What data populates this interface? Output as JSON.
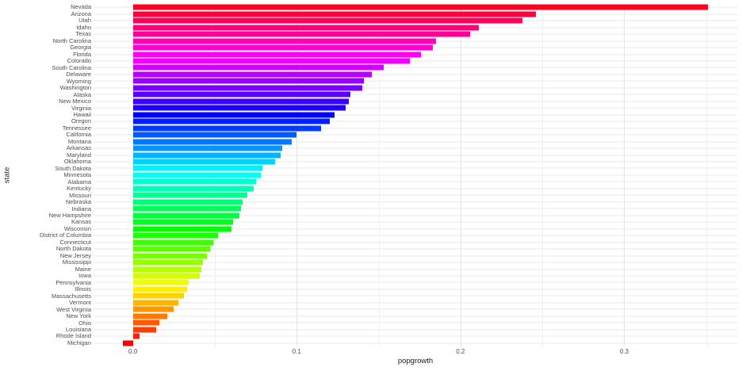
{
  "chart_data": {
    "type": "bar",
    "orientation": "horizontal",
    "title": "",
    "xlabel": "popgrowth",
    "ylabel": "state",
    "categories": [
      "Nevada",
      "Arizona",
      "Utah",
      "Idaho",
      "Texas",
      "North Carolina",
      "Georgia",
      "Florida",
      "Colorado",
      "South Carolina",
      "Delaware",
      "Wyoming",
      "Washington",
      "Alaska",
      "New Mexico",
      "Virginia",
      "Hawaii",
      "Oregon",
      "Tennessee",
      "California",
      "Montana",
      "Arkansas",
      "Maryland",
      "Oklahoma",
      "South Dakota",
      "Minnesota",
      "Alabama",
      "Kentucky",
      "Missouri",
      "Nebraska",
      "Indiana",
      "New Hampshire",
      "Kansas",
      "Wisconsin",
      "District of Columbia",
      "Connecticut",
      "North Dakota",
      "New Jersey",
      "Mississippi",
      "Maine",
      "Iowa",
      "Pennsylvania",
      "Illinois",
      "Massachusetts",
      "Vermont",
      "West Virginia",
      "New York",
      "Ohio",
      "Louisiana",
      "Rhode Island",
      "Michigan"
    ],
    "values": [
      0.351,
      0.246,
      0.238,
      0.211,
      0.206,
      0.185,
      0.183,
      0.176,
      0.169,
      0.153,
      0.146,
      0.141,
      0.14,
      0.133,
      0.132,
      0.13,
      0.123,
      0.12,
      0.115,
      0.1,
      0.097,
      0.091,
      0.09,
      0.087,
      0.079,
      0.078,
      0.075,
      0.074,
      0.07,
      0.067,
      0.066,
      0.065,
      0.061,
      0.06,
      0.052,
      0.049,
      0.047,
      0.045,
      0.043,
      0.042,
      0.041,
      0.034,
      0.033,
      0.031,
      0.028,
      0.025,
      0.021,
      0.016,
      0.014,
      0.004,
      -0.006
    ],
    "xlim": [
      -0.024,
      0.369
    ],
    "x_ticks": [
      0.0,
      0.1,
      0.2,
      0.3
    ],
    "x_tick_labels": [
      "0.0",
      "0.1",
      "0.2",
      "0.3"
    ],
    "x_minor_ticks": [
      0.05,
      0.15,
      0.25,
      0.35
    ],
    "grid": true,
    "legend": false,
    "palette": {
      "type": "hsl-rainbow-reversed",
      "hue_start_deg": 352.94,
      "hue_end_deg": 0,
      "saturation_pct": 100,
      "lightness_pct": 50
    }
  },
  "theme": {
    "background": "#ffffff",
    "grid_major": "#e3e3e3",
    "grid_minor": "#f1f1f1",
    "grid_row": "#eaeaea",
    "axis_text": "#4d4d4d",
    "axis_title": "#1a1a1a"
  }
}
